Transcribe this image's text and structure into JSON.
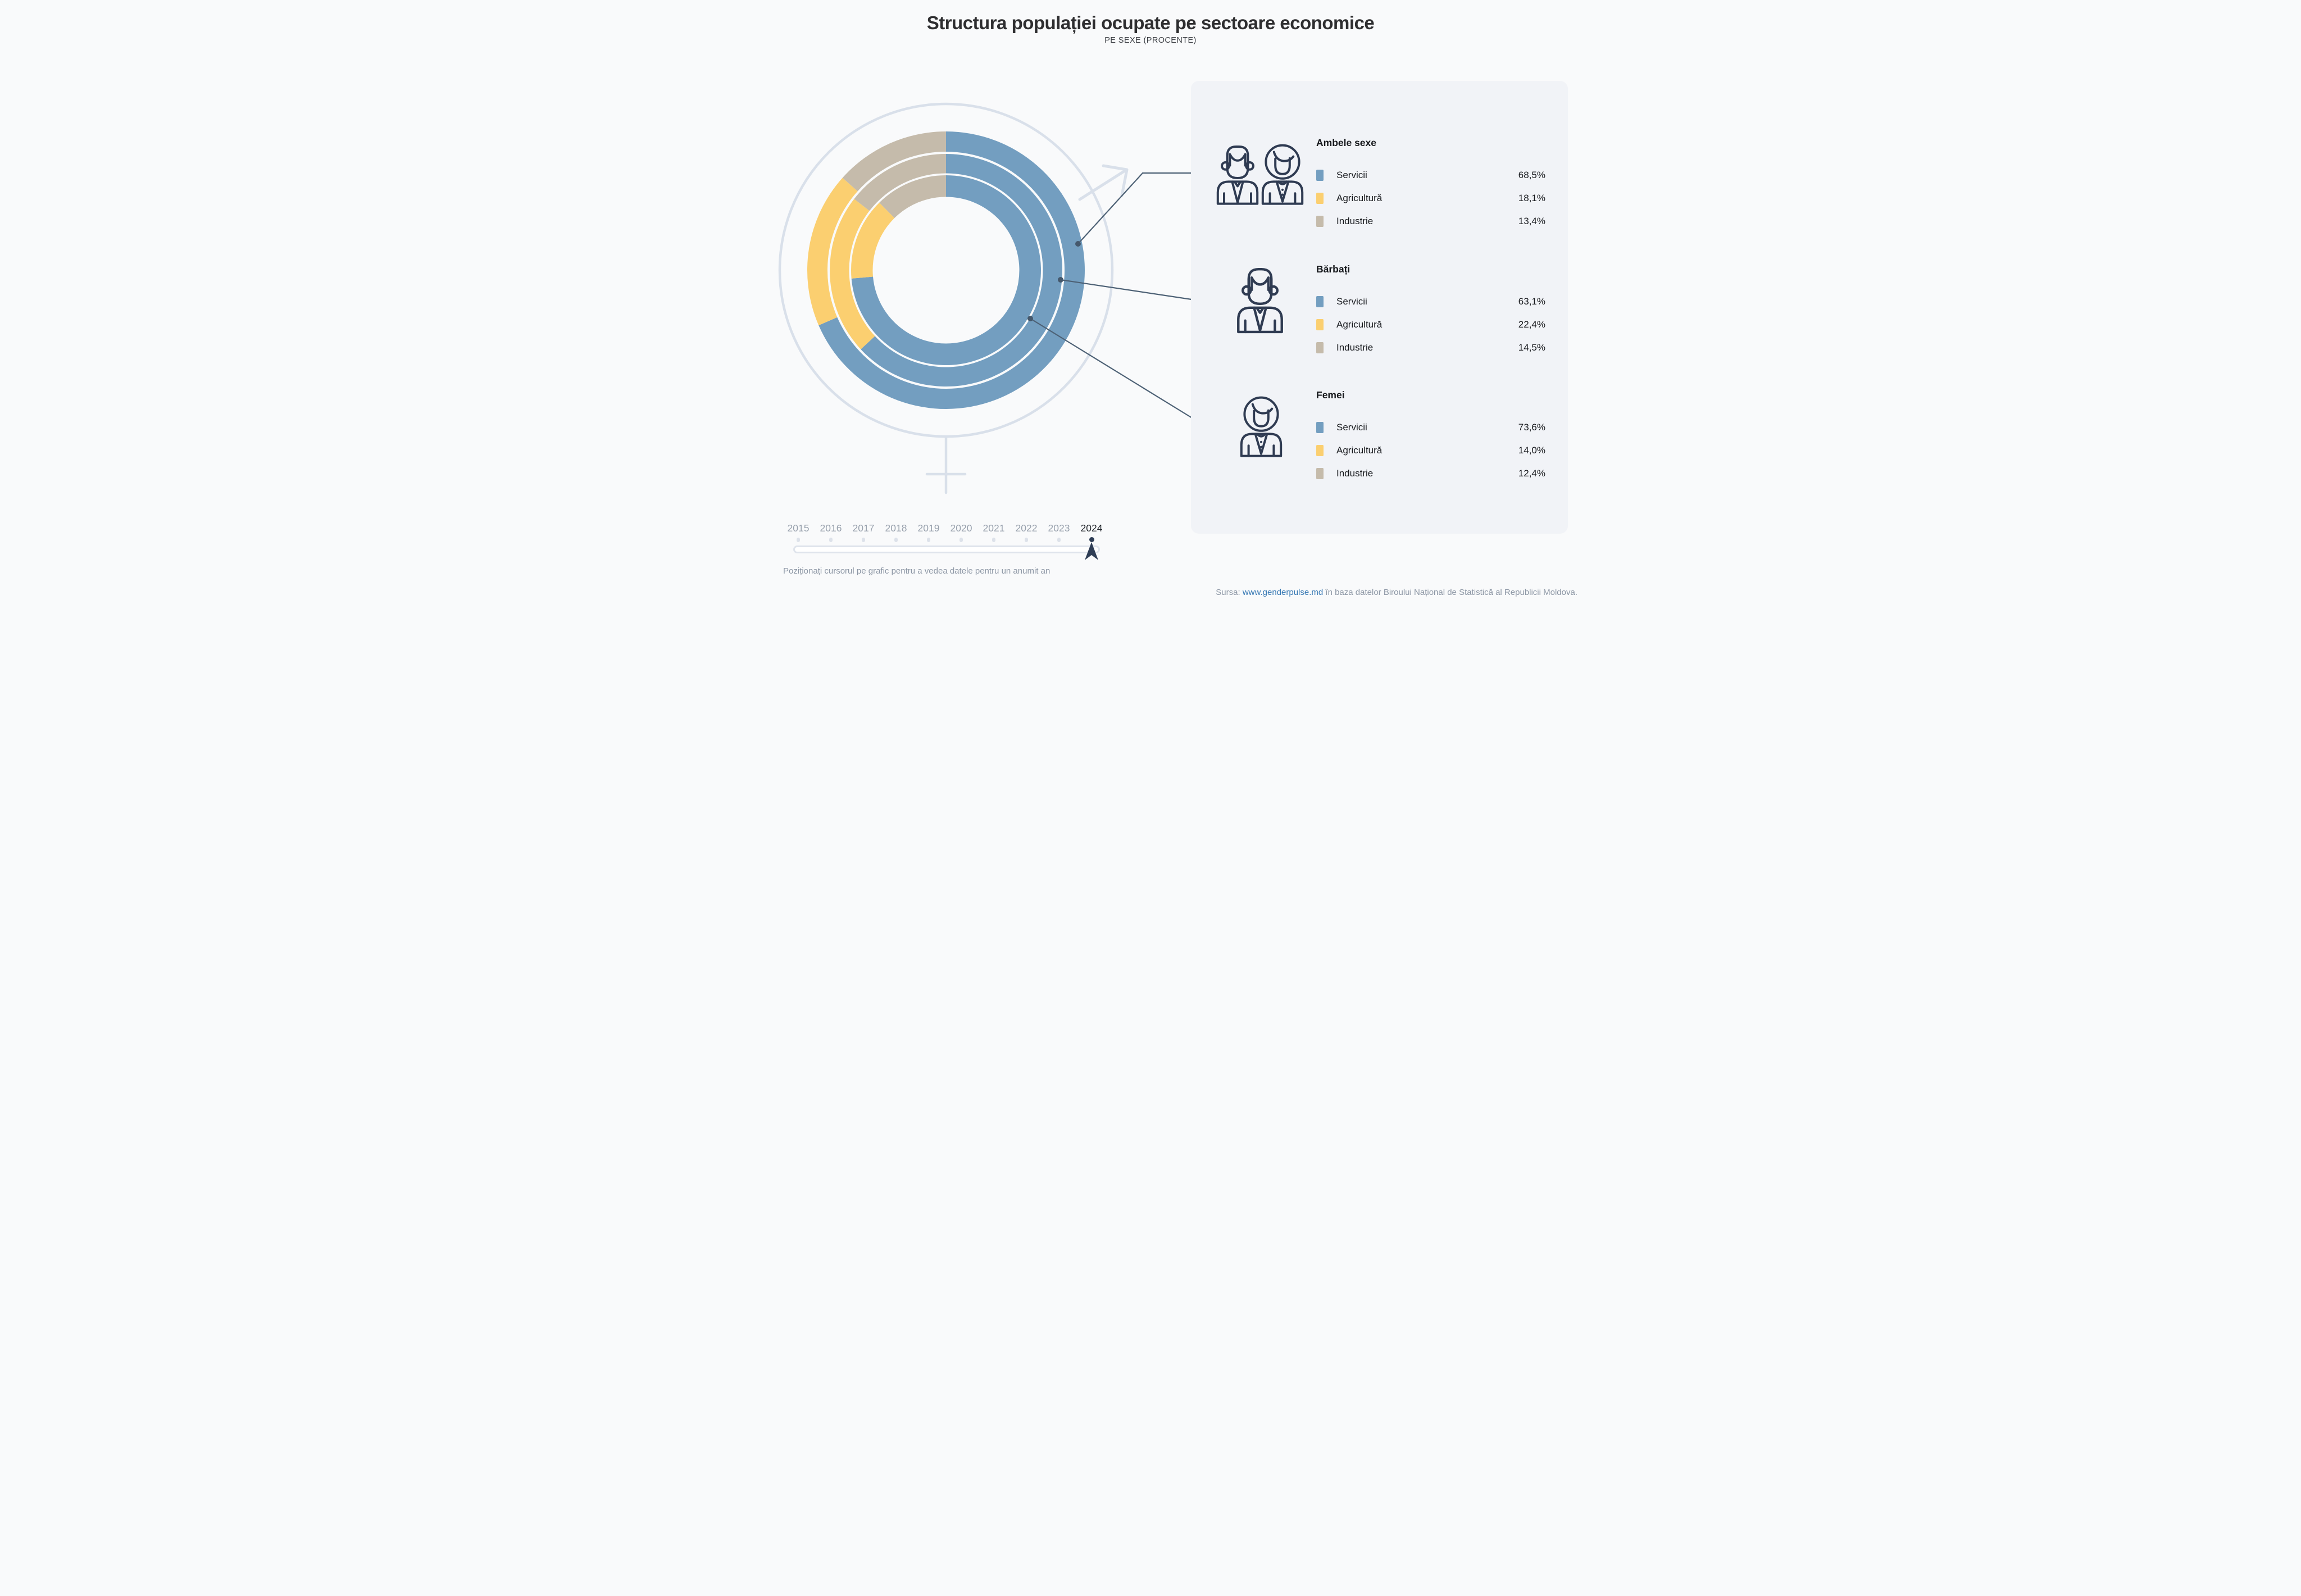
{
  "title": "Structura populației ocupate pe sectoare economice",
  "subtitle": "PE SEXE (PROCENTE)",
  "colors": {
    "servicii": "#739ec0",
    "agricultura": "#fbcf70",
    "industrie": "#c5bbab",
    "page_bg": "#f9fafb",
    "panel_bg": "#f1f3f7",
    "symbol_gray": "#d9e0ea",
    "callout_navy": "#4d6175",
    "icon_navy": "#2f3b52",
    "selected_navy": "#2e3d55",
    "muted_text": "#8d97a5",
    "link_blue": "#3879b4"
  },
  "chart_data": {
    "type": "donut",
    "title": "Structura populației ocupate pe sectoare economice",
    "subtitle": "PE SEXE (PROCENTE)",
    "unit": "procente",
    "year": "2024",
    "segments": [
      "Servicii",
      "Agricultură",
      "Industrie"
    ],
    "segment_colors": [
      "#739ec0",
      "#fbcf70",
      "#c5bbab"
    ],
    "start_angle_deg": 0,
    "direction": "clockwise",
    "rings": [
      {
        "name": "Ambele sexe",
        "position": "outer",
        "values": [
          68.5,
          18.1,
          13.4
        ]
      },
      {
        "name": "Bărbați",
        "position": "middle",
        "values": [
          63.1,
          22.4,
          14.5
        ]
      },
      {
        "name": "Femei",
        "position": "inner",
        "values": [
          73.6,
          14.0,
          12.4
        ]
      }
    ]
  },
  "legend": {
    "groups": [
      {
        "label": "Ambele sexe",
        "icon": "couple-icon",
        "rows": [
          {
            "label": "Servicii",
            "value": "68,5%",
            "color": "servicii"
          },
          {
            "label": "Agricultură",
            "value": "18,1%",
            "color": "agricultura"
          },
          {
            "label": "Industrie",
            "value": "13,4%",
            "color": "industrie"
          }
        ]
      },
      {
        "label": "Bărbați",
        "icon": "man-icon",
        "rows": [
          {
            "label": "Servicii",
            "value": "63,1%",
            "color": "servicii"
          },
          {
            "label": "Agricultură",
            "value": "22,4%",
            "color": "agricultura"
          },
          {
            "label": "Industrie",
            "value": "14,5%",
            "color": "industrie"
          }
        ]
      },
      {
        "label": "Femei",
        "icon": "woman-icon",
        "rows": [
          {
            "label": "Servicii",
            "value": "73,6%",
            "color": "servicii"
          },
          {
            "label": "Agricultură",
            "value": "14,0%",
            "color": "agricultura"
          },
          {
            "label": "Industrie",
            "value": "12,4%",
            "color": "industrie"
          }
        ]
      }
    ]
  },
  "timeline": {
    "years": [
      "2015",
      "2016",
      "2017",
      "2018",
      "2019",
      "2020",
      "2021",
      "2022",
      "2023",
      "2024"
    ],
    "selected": "2024",
    "hint": "Poziționați cursorul pe grafic pentru a vedea datele pentru un anumit an"
  },
  "source": {
    "prefix": "Sursa: ",
    "link": "www.genderpulse.md",
    "suffix": " în baza datelor Biroului Național de Statistică al Republicii Moldova."
  }
}
